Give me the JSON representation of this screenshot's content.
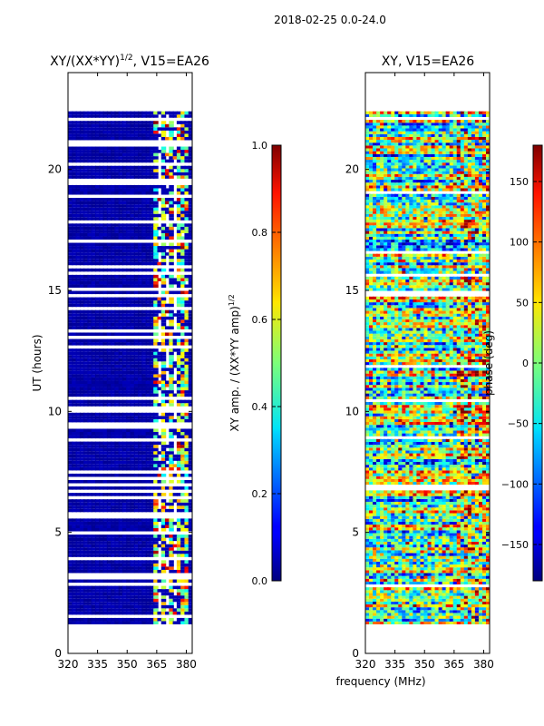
{
  "figure": {
    "suptitle": "2018-02-25 0.0-24.0",
    "xlabel_shared": "frequency (MHz)"
  },
  "chart_data": [
    {
      "type": "heatmap",
      "title": "XY/(XX*YY)",
      "title_superscript": "1/2",
      "title_suffix": ", V15=EA26",
      "ylabel": "UT (hours)",
      "xlim": [
        320,
        383
      ],
      "ylim": [
        0,
        24
      ],
      "x_ticks": [
        "320",
        "335",
        "350",
        "365",
        "380"
      ],
      "x_tick_values": [
        320,
        335,
        350,
        365,
        380
      ],
      "y_ticks": [
        "0",
        "5",
        "10",
        "15",
        "20"
      ],
      "y_tick_values": [
        0,
        5,
        10,
        15,
        20
      ],
      "data_time_range": [
        1.2,
        22.4
      ],
      "data_freq_range": [
        320,
        383
      ],
      "colorbar": {
        "label": "XY amp. / (XX*YY amp)",
        "label_superscript": "1/2",
        "range": [
          0.0,
          1.0
        ],
        "ticks": [
          "0.0",
          "0.2",
          "0.4",
          "0.6",
          "0.8",
          "1.0"
        ],
        "tick_values": [
          0.0,
          0.2,
          0.4,
          0.6,
          0.8,
          1.0
        ]
      }
    },
    {
      "type": "heatmap",
      "title": "XY, V15=EA26",
      "xlim": [
        320,
        383
      ],
      "ylim": [
        0,
        24
      ],
      "x_ticks": [
        "320",
        "335",
        "350",
        "365",
        "380"
      ],
      "x_tick_values": [
        320,
        335,
        350,
        365,
        380
      ],
      "y_ticks": [
        "0",
        "5",
        "10",
        "15",
        "20"
      ],
      "y_tick_values": [
        0,
        5,
        10,
        15,
        20
      ],
      "data_time_range": [
        1.2,
        22.4
      ],
      "data_freq_range": [
        320,
        383
      ],
      "colorbar": {
        "label": "phase (deg)",
        "range": [
          -180,
          180
        ],
        "ticks": [
          "−150",
          "−100",
          "−50",
          "0",
          "50",
          "100",
          "150"
        ],
        "tick_values": [
          -150,
          -100,
          -50,
          0,
          50,
          100,
          150
        ]
      }
    }
  ]
}
